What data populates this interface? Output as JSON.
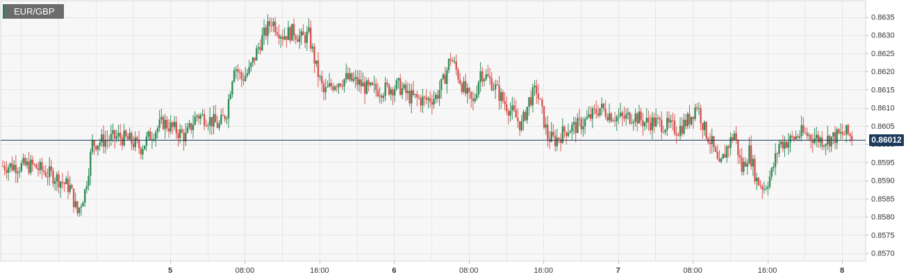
{
  "symbol": "EUR/GBP",
  "last_price_label": "0.86012",
  "colors": {
    "up": "#2e8b57",
    "down": "#d9534f",
    "grid": "#e6e6e6",
    "plot_bg": "#f7f7f7",
    "price_line": "#1b3a5c",
    "axis_text": "#333333"
  },
  "chart_data": {
    "type": "candlestick",
    "title": "",
    "xlabel": "",
    "ylabel": "",
    "ylim": [
      0.8568,
      0.864
    ],
    "y_ticks": [
      "0.8635",
      "0.8630",
      "0.8625",
      "0.8620",
      "0.8615",
      "0.8610",
      "0.8605",
      "0.8600",
      "0.8595",
      "0.8590",
      "0.8585",
      "0.8580",
      "0.8575",
      "0.8570"
    ],
    "x_ticks": [
      {
        "label": "5",
        "bold": true,
        "index": 45
      },
      {
        "label": "08:00",
        "bold": false,
        "index": 65
      },
      {
        "label": "16:00",
        "bold": false,
        "index": 85
      },
      {
        "label": "6",
        "bold": true,
        "index": 105
      },
      {
        "label": "08:00",
        "bold": false,
        "index": 125
      },
      {
        "label": "16:00",
        "bold": false,
        "index": 145
      },
      {
        "label": "7",
        "bold": true,
        "index": 165
      },
      {
        "label": "08:00",
        "bold": false,
        "index": 185
      },
      {
        "label": "16:00",
        "bold": false,
        "index": 205
      },
      {
        "label": "8",
        "bold": true,
        "index": 225
      }
    ],
    "last_price": 0.86012,
    "grid": true,
    "close_path": [
      [
        0,
        0.8594
      ],
      [
        8,
        0.8594
      ],
      [
        14,
        0.8591
      ],
      [
        18,
        0.8588
      ],
      [
        20,
        0.8581
      ],
      [
        22,
        0.8587
      ],
      [
        24,
        0.86
      ],
      [
        27,
        0.8601
      ],
      [
        31,
        0.8602
      ],
      [
        34,
        0.8601
      ],
      [
        37,
        0.8599
      ],
      [
        40,
        0.8603
      ],
      [
        43,
        0.8606
      ],
      [
        46,
        0.8604
      ],
      [
        49,
        0.8602
      ],
      [
        52,
        0.8608
      ],
      [
        55,
        0.8607
      ],
      [
        58,
        0.8605
      ],
      [
        60,
        0.8609
      ],
      [
        62,
        0.8622
      ],
      [
        64,
        0.8618
      ],
      [
        66,
        0.862
      ],
      [
        69,
        0.8628
      ],
      [
        72,
        0.8634
      ],
      [
        75,
        0.863
      ],
      [
        78,
        0.8631
      ],
      [
        80,
        0.8629
      ],
      [
        82,
        0.863
      ],
      [
        84,
        0.8621
      ],
      [
        86,
        0.8614
      ],
      [
        89,
        0.8617
      ],
      [
        92,
        0.8618
      ],
      [
        95,
        0.8617
      ],
      [
        98,
        0.8615
      ],
      [
        102,
        0.8615
      ],
      [
        106,
        0.8616
      ],
      [
        109,
        0.8613
      ],
      [
        113,
        0.8612
      ],
      [
        116,
        0.8613
      ],
      [
        118,
        0.8617
      ],
      [
        120,
        0.8624
      ],
      [
        122,
        0.8619
      ],
      [
        124,
        0.8614
      ],
      [
        126,
        0.8611
      ],
      [
        128,
        0.862
      ],
      [
        131,
        0.8617
      ],
      [
        134,
        0.8612
      ],
      [
        137,
        0.8608
      ],
      [
        139,
        0.8605
      ],
      [
        141,
        0.8612
      ],
      [
        143,
        0.8615
      ],
      [
        146,
        0.8602
      ],
      [
        148,
        0.8601
      ],
      [
        151,
        0.8604
      ],
      [
        154,
        0.8605
      ],
      [
        157,
        0.8607
      ],
      [
        160,
        0.861
      ],
      [
        163,
        0.8608
      ],
      [
        166,
        0.8607
      ],
      [
        169,
        0.8608
      ],
      [
        172,
        0.8606
      ],
      [
        175,
        0.8606
      ],
      [
        178,
        0.8605
      ],
      [
        181,
        0.8604
      ],
      [
        184,
        0.8607
      ],
      [
        186,
        0.8611
      ],
      [
        188,
        0.8604
      ],
      [
        190,
        0.86
      ],
      [
        192,
        0.8593
      ],
      [
        194,
        0.8599
      ],
      [
        196,
        0.8603
      ],
      [
        198,
        0.8593
      ],
      [
        200,
        0.8598
      ],
      [
        202,
        0.859
      ],
      [
        204,
        0.8588
      ],
      [
        206,
        0.8592
      ],
      [
        208,
        0.86
      ],
      [
        211,
        0.8601
      ],
      [
        214,
        0.8603
      ],
      [
        217,
        0.8602
      ],
      [
        220,
        0.8601
      ],
      [
        223,
        0.8602
      ],
      [
        226,
        0.8603
      ],
      [
        229,
        0.8601
      ]
    ]
  }
}
